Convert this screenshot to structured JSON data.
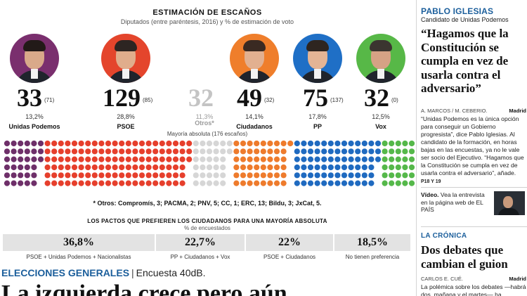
{
  "infographic": {
    "title": "ESTIMACIÓN DE ESCAÑOS",
    "subtitle": "Diputados (entre paréntesis, 2016) y % de estimación de voto",
    "parties": [
      {
        "name": "Unidas Podemos",
        "seats": "33",
        "prev": "(71)",
        "pct": "13,2%",
        "portrait_color": "#7a2f6e",
        "skin": "#d9a98a",
        "hair": "#221a18"
      },
      {
        "name": "PSOE",
        "seats": "129",
        "prev": "(85)",
        "pct": "28,8%",
        "portrait_color": "#e4452c",
        "skin": "#e0ad8c",
        "hair": "#2d2522"
      },
      {
        "name": "Ciudadanos",
        "seats": "49",
        "prev": "(32)",
        "pct": "14,1%",
        "portrait_color": "#ef7e2b",
        "skin": "#e2b090",
        "hair": "#3a2a22"
      },
      {
        "name": "PP",
        "seats": "75",
        "prev": "(137)",
        "pct": "17,8%",
        "portrait_color": "#1f6fc6",
        "skin": "#e4b495",
        "hair": "#2e2520"
      },
      {
        "name": "Vox",
        "seats": "32",
        "prev": "(0)",
        "pct": "12,5%",
        "portrait_color": "#57b847",
        "skin": "#d6a285",
        "hair": "#3b3530"
      }
    ],
    "otros": {
      "name": "Otros*",
      "seats": "32",
      "pct": "11,3%"
    },
    "majority_label": "Mayoría absoluta (176 escaños)",
    "otros_detail": "* Otros: Compromís, 3; PACMA, 2; PNV, 5; CC, 1; ERC, 13; Bildu, 3; JxCat, 5.",
    "seat_colors": {
      "podemos": "#6e2f69",
      "psoe": "#e63f2c",
      "otros": "#d6d6d6",
      "cs": "#ee7b2c",
      "pp": "#1f6ac0",
      "vox": "#55b84a"
    }
  },
  "seat_data": {
    "groups": [
      {
        "key": "podemos",
        "seats": 33
      },
      {
        "key": "psoe",
        "seats": 129
      },
      {
        "key": "otros",
        "seats": 32
      },
      {
        "key": "cs",
        "seats": 49
      },
      {
        "key": "pp",
        "seats": 75
      },
      {
        "key": "vox",
        "seats": 32
      }
    ],
    "total": 350,
    "majority": 176
  },
  "pacts": {
    "title": "LOS PACTOS QUE PREFIEREN LOS CIUDADANOS PARA UNA MAYORÍA ABSOLUTA",
    "subtitle": "% de encuestados",
    "items": [
      {
        "value": "36,8%",
        "label": "PSOE + Unidas Podemos + Nacionalistas"
      },
      {
        "value": "22,7%",
        "label": "PP + Ciudadanos + Vox"
      },
      {
        "value": "22%",
        "label": "PSOE + Ciudadanos"
      },
      {
        "value": "18,5%",
        "label": "No tienen preferencia"
      }
    ]
  },
  "article": {
    "section": "ELECCIONES GENERALES",
    "separator": "|",
    "survey": "Encuesta 40dB.",
    "headline": "La izquierda crece pero aún"
  },
  "sidebar": {
    "kicker": "PABLO IGLESIAS",
    "role": "Candidato de Unidas Podemos",
    "quote": "“Hagamos que la Constitución se cumpla en vez de usarla contra el adversario”",
    "byline": "A. MARCOS / M. CEBERIO.",
    "city": "Madrid",
    "body": "“Unidas Podemos es la única opción para conseguir un Gobierno progresista”, dice Pablo Iglesias. Al candidato de la formación, en horas bajas en las encuestas, ya no le vale ser socio del Ejecutivo. “Hagamos que la Constitución se cumpla en vez de usarla contra el adversario”, añade.",
    "ref": "P18 Y 19",
    "video_label": "Vídeo.",
    "video_text": "Vea la entrevista en la página web de EL PAÍS",
    "kicker2": "LA CRÓNICA",
    "headline2": "Dos debates que cambian el guion",
    "byline2": "CARLOS E. CUÉ.",
    "city2": "Madrid",
    "body2": "La polémica sobre los debates —habrá dos, mañana y el martes— ha"
  }
}
